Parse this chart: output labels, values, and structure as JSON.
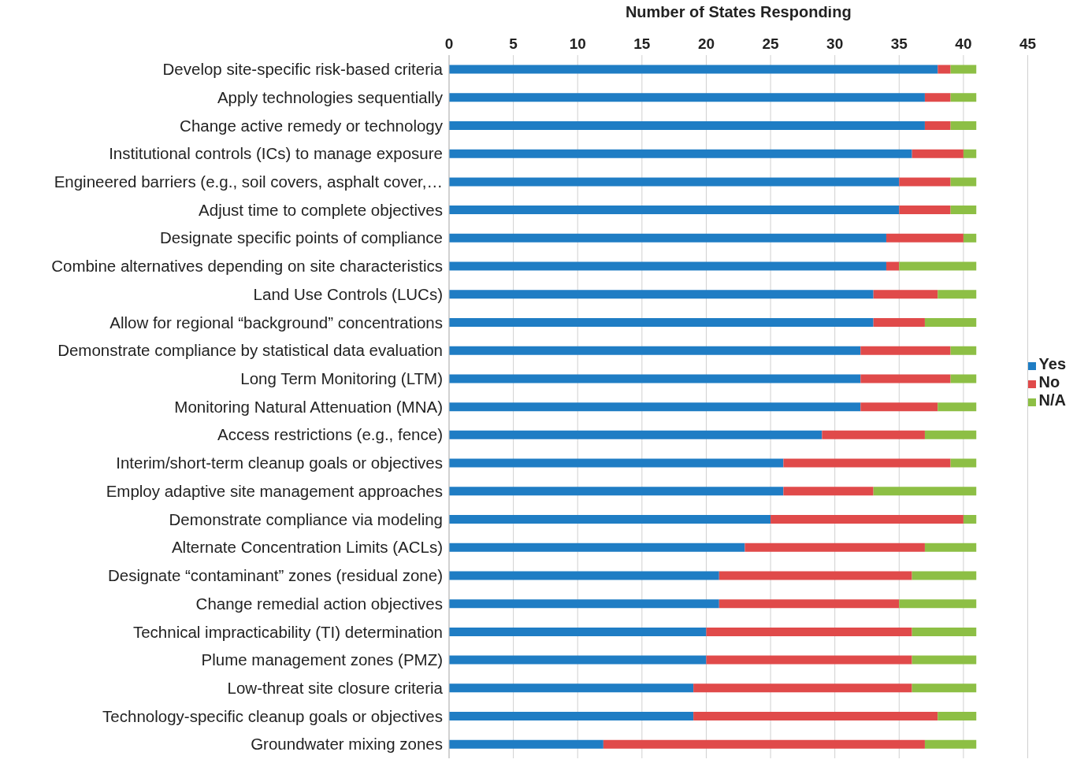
{
  "chart_data": {
    "type": "bar",
    "orientation": "horizontal",
    "stacked": true,
    "xlabel": "Number of States Responding",
    "categories": [
      "Develop site-specific risk-based criteria",
      "Apply technologies sequentially",
      "Change active remedy or technology",
      "Institutional controls (ICs) to manage exposure",
      "Engineered barriers (e.g., soil covers, asphalt cover,…",
      "Adjust time to complete objectives",
      "Designate specific points of compliance",
      "Combine alternatives depending on site characteristics",
      "Land Use Controls (LUCs)",
      "Allow  for regional “background” concentrations",
      "Demonstrate compliance by statistical data evaluation",
      "Long Term Monitoring (LTM)",
      "Monitoring Natural Attenuation (MNA)",
      "Access restrictions (e.g., fence)",
      "Interim/short-term cleanup goals or objectives",
      "Employ adaptive site management approaches",
      "Demonstrate compliance via modeling",
      "Alternate Concentration Limits (ACLs)",
      "Designate “contaminant” zones (residual zone)",
      "Change remedial action objectives",
      "Technical impracticability (TI) determination",
      "Plume management zones (PMZ)",
      "Low-threat site closure criteria",
      "Technology-specific cleanup goals or objectives",
      "Groundwater mixing zones"
    ],
    "series": [
      {
        "name": "Yes",
        "color": "#1f7dc4",
        "values": [
          38,
          37,
          37,
          36,
          35,
          35,
          34,
          34,
          33,
          33,
          32,
          32,
          32,
          29,
          26,
          26,
          25,
          23,
          21,
          21,
          20,
          20,
          19,
          19,
          12
        ]
      },
      {
        "name": "No",
        "color": "#e04a4a",
        "values": [
          1,
          2,
          2,
          4,
          4,
          4,
          6,
          1,
          5,
          4,
          7,
          7,
          6,
          8,
          13,
          7,
          15,
          14,
          15,
          14,
          16,
          16,
          17,
          19,
          25
        ]
      },
      {
        "name": "N/A",
        "color": "#8dbf45",
        "values": [
          2,
          2,
          2,
          1,
          2,
          2,
          1,
          6,
          3,
          4,
          2,
          2,
          3,
          4,
          2,
          8,
          1,
          4,
          5,
          6,
          5,
          5,
          5,
          3,
          4
        ]
      }
    ],
    "xlim": [
      0,
      45
    ],
    "xticks": [
      0,
      5,
      10,
      15,
      20,
      25,
      30,
      35,
      40,
      45
    ],
    "grid": "x",
    "legend": "right"
  }
}
